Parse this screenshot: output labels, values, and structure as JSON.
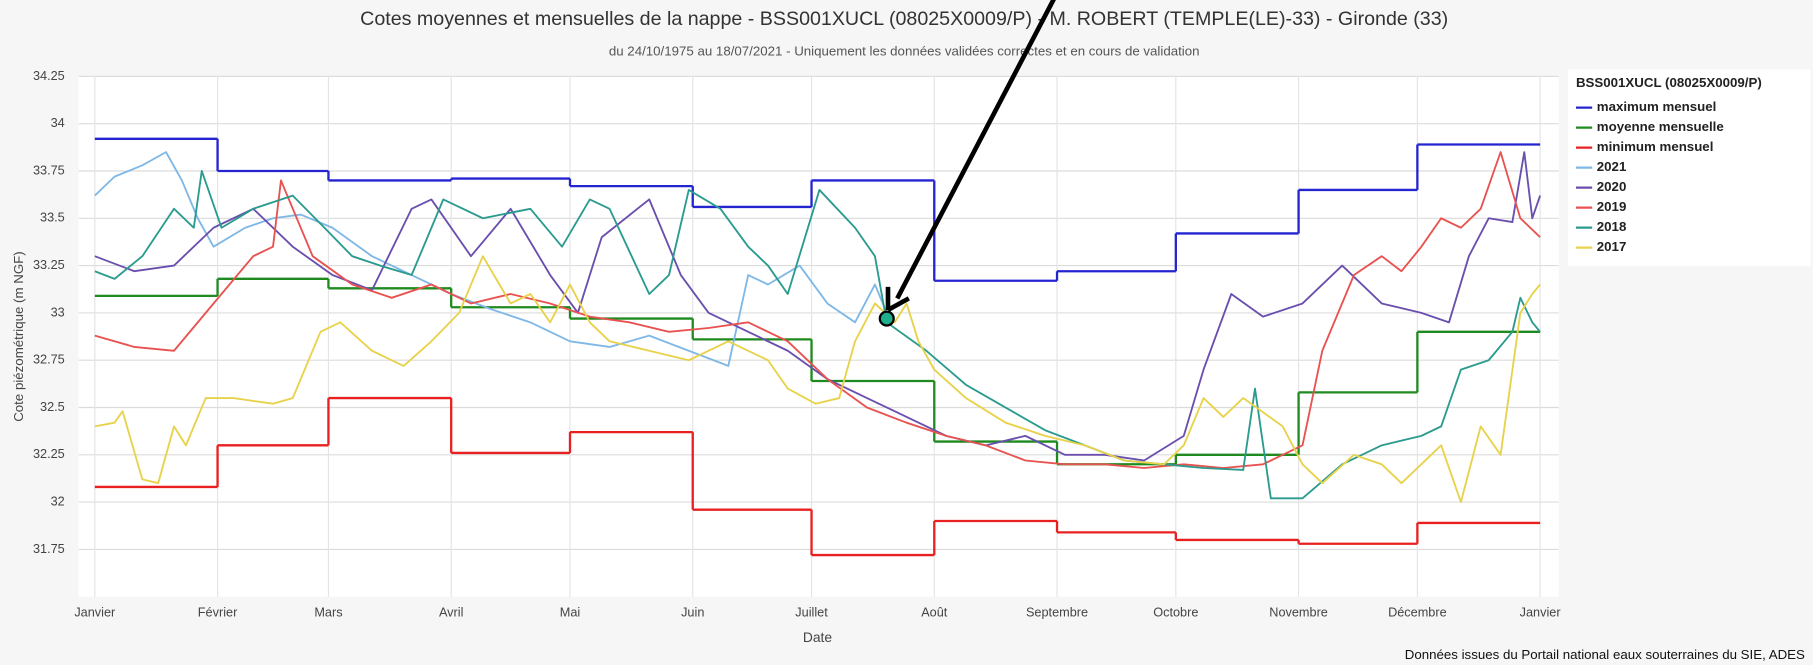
{
  "chart_data": {
    "type": "line",
    "title": "Cotes moyennes et mensuelles de la nappe - BSS001XUCL (08025X0009/P) - M. ROBERT (TEMPLE(LE)-33) - Gironde (33)",
    "subtitle": "du 24/10/1975 au 18/07/2021 - Uniquement les données validées correctes et en cours de validation",
    "x_label": "Date",
    "y_label": "Cote piézométrique (m NGF)",
    "legend_title": "BSS001XUCL (08025X0009/P)",
    "source": "Données issues du Portail national eaux souterraines du SIE, ADES",
    "legend": "right",
    "grid": true,
    "xlim": [
      0,
      365
    ],
    "xticks": [
      {
        "value": 0,
        "label": "Janvier"
      },
      {
        "value": 31,
        "label": "Février"
      },
      {
        "value": 59,
        "label": "Mars"
      },
      {
        "value": 90,
        "label": "Avril"
      },
      {
        "value": 120,
        "label": "Mai"
      },
      {
        "value": 151,
        "label": "Juin"
      },
      {
        "value": 181,
        "label": "Juillet"
      },
      {
        "value": 212,
        "label": "Août"
      },
      {
        "value": 243,
        "label": "Septembre"
      },
      {
        "value": 273,
        "label": "Octobre"
      },
      {
        "value": 304,
        "label": "Novembre"
      },
      {
        "value": 334,
        "label": "Décembre"
      },
      {
        "value": 365,
        "label": "Janvier"
      }
    ],
    "ylim": [
      31.5,
      34.25
    ],
    "yticks": [
      31.75,
      32,
      32.25,
      32.5,
      32.75,
      33,
      33.25,
      33.5,
      33.75,
      34,
      34.25
    ],
    "highlight": {
      "x": 200,
      "y": 32.97,
      "color": "#1fae8c"
    },
    "series": [
      {
        "name": "maximum mensuel",
        "color": "#2424d0",
        "step": true,
        "x": [
          0,
          31,
          59,
          90,
          120,
          151,
          181,
          212,
          243,
          273,
          304,
          334
        ],
        "values": [
          33.92,
          33.75,
          33.7,
          33.71,
          33.67,
          33.56,
          33.7,
          33.17,
          33.22,
          33.42,
          33.65,
          33.89
        ]
      },
      {
        "name": "moyenne mensuelle",
        "color": "#1f8a1f",
        "step": true,
        "x": [
          0,
          31,
          59,
          90,
          120,
          151,
          181,
          212,
          243,
          273,
          304,
          334
        ],
        "values": [
          33.09,
          33.18,
          33.13,
          33.03,
          32.97,
          32.86,
          32.64,
          32.32,
          32.2,
          32.25,
          32.58,
          32.9
        ]
      },
      {
        "name": "minimum mensuel",
        "color": "#e82020",
        "step": true,
        "x": [
          0,
          31,
          59,
          90,
          120,
          151,
          181,
          212,
          243,
          273,
          304,
          334
        ],
        "values": [
          32.08,
          32.3,
          32.55,
          32.26,
          32.37,
          31.96,
          31.72,
          31.9,
          31.84,
          31.8,
          31.78,
          31.89
        ]
      },
      {
        "name": "2021",
        "color": "#7fb8e6",
        "x": [
          0,
          5,
          12,
          18,
          22,
          26,
          30,
          38,
          45,
          52,
          60,
          70,
          80,
          90,
          100,
          110,
          120,
          130,
          140,
          150,
          160,
          165,
          170,
          178,
          185,
          192,
          197,
          200
        ],
        "values": [
          33.62,
          33.72,
          33.78,
          33.85,
          33.7,
          33.5,
          33.35,
          33.45,
          33.5,
          33.52,
          33.45,
          33.3,
          33.2,
          33.1,
          33.02,
          32.95,
          32.85,
          32.82,
          32.88,
          32.8,
          32.72,
          33.2,
          33.15,
          33.25,
          33.05,
          32.95,
          33.15,
          33.0
        ]
      },
      {
        "name": "2020",
        "color": "#6a4fae",
        "x": [
          0,
          10,
          20,
          30,
          40,
          50,
          60,
          70,
          80,
          85,
          95,
          105,
          115,
          122,
          128,
          140,
          148,
          155,
          165,
          175,
          185,
          195,
          205,
          215,
          225,
          235,
          245,
          255,
          265,
          275,
          280,
          287,
          295,
          305,
          315,
          325,
          335,
          342,
          347,
          352,
          358,
          361,
          363,
          365
        ],
        "values": [
          33.3,
          33.22,
          33.25,
          33.45,
          33.55,
          33.35,
          33.2,
          33.12,
          33.55,
          33.6,
          33.3,
          33.55,
          33.2,
          33.0,
          33.4,
          33.6,
          33.2,
          33.0,
          32.9,
          32.8,
          32.65,
          32.55,
          32.45,
          32.35,
          32.3,
          32.35,
          32.25,
          32.25,
          32.22,
          32.35,
          32.7,
          33.1,
          32.98,
          33.05,
          33.25,
          33.05,
          33.0,
          32.95,
          33.3,
          33.5,
          33.48,
          33.85,
          33.5,
          33.62
        ]
      },
      {
        "name": "2019",
        "color": "#e8524f",
        "x": [
          0,
          10,
          20,
          30,
          40,
          45,
          47,
          55,
          65,
          75,
          85,
          95,
          105,
          115,
          125,
          135,
          145,
          155,
          165,
          175,
          185,
          195,
          205,
          215,
          225,
          235,
          245,
          255,
          265,
          275,
          285,
          295,
          305,
          310,
          318,
          325,
          330,
          335,
          340,
          345,
          350,
          355,
          360,
          365
        ],
        "values": [
          32.88,
          32.82,
          32.8,
          33.05,
          33.3,
          33.35,
          33.7,
          33.3,
          33.15,
          33.08,
          33.15,
          33.05,
          33.1,
          33.05,
          32.98,
          32.95,
          32.9,
          32.92,
          32.95,
          32.85,
          32.65,
          32.5,
          32.42,
          32.35,
          32.3,
          32.22,
          32.2,
          32.2,
          32.18,
          32.2,
          32.18,
          32.2,
          32.3,
          32.8,
          33.2,
          33.3,
          33.22,
          33.35,
          33.5,
          33.45,
          33.55,
          33.85,
          33.5,
          33.4
        ]
      },
      {
        "name": "2018",
        "color": "#2a9b8e",
        "x": [
          0,
          5,
          12,
          20,
          25,
          27,
          32,
          40,
          50,
          58,
          65,
          72,
          80,
          88,
          98,
          110,
          118,
          125,
          130,
          140,
          145,
          150,
          158,
          165,
          170,
          175,
          183,
          192,
          197,
          200,
          210,
          220,
          230,
          240,
          250,
          260,
          270,
          280,
          290,
          293,
          297,
          305,
          315,
          325,
          335,
          340,
          345,
          352,
          358,
          360,
          363,
          365
        ],
        "values": [
          33.22,
          33.18,
          33.3,
          33.55,
          33.45,
          33.75,
          33.45,
          33.55,
          33.62,
          33.45,
          33.3,
          33.25,
          33.2,
          33.6,
          33.5,
          33.55,
          33.35,
          33.6,
          33.55,
          33.1,
          33.2,
          33.65,
          33.55,
          33.35,
          33.25,
          33.1,
          33.65,
          33.45,
          33.3,
          32.95,
          32.8,
          32.62,
          32.5,
          32.38,
          32.3,
          32.22,
          32.2,
          32.18,
          32.17,
          32.6,
          32.02,
          32.02,
          32.2,
          32.3,
          32.35,
          32.4,
          32.7,
          32.75,
          32.9,
          33.08,
          32.95,
          32.9
        ]
      },
      {
        "name": "2017",
        "color": "#e8d24a",
        "x": [
          0,
          5,
          7,
          12,
          16,
          20,
          23,
          28,
          35,
          45,
          50,
          57,
          62,
          70,
          78,
          85,
          92,
          98,
          105,
          110,
          115,
          120,
          125,
          130,
          140,
          150,
          160,
          170,
          175,
          182,
          188,
          192,
          197,
          202,
          205,
          208,
          212,
          220,
          230,
          240,
          250,
          260,
          270,
          275,
          280,
          285,
          290,
          300,
          305,
          310,
          318,
          325,
          330,
          340,
          345,
          350,
          355,
          360,
          363,
          365
        ],
        "values": [
          32.4,
          32.42,
          32.48,
          32.12,
          32.1,
          32.4,
          32.3,
          32.55,
          32.55,
          32.52,
          32.55,
          32.9,
          32.95,
          32.8,
          32.72,
          32.85,
          33.0,
          33.3,
          33.05,
          33.1,
          32.95,
          33.15,
          32.95,
          32.85,
          32.8,
          32.75,
          32.85,
          32.75,
          32.6,
          32.52,
          32.55,
          32.85,
          33.05,
          32.95,
          33.05,
          32.85,
          32.7,
          32.55,
          32.42,
          32.35,
          32.3,
          32.22,
          32.2,
          32.3,
          32.55,
          32.45,
          32.55,
          32.4,
          32.2,
          32.1,
          32.25,
          32.2,
          32.1,
          32.3,
          32.0,
          32.4,
          32.25,
          33.0,
          33.1,
          33.15
        ]
      }
    ]
  }
}
